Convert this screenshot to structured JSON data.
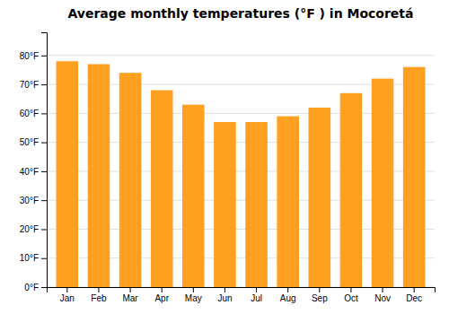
{
  "chart_data": {
    "type": "bar",
    "title": "Average monthly temperatures (°F ) in Mocoretá",
    "categories": [
      "Jan",
      "Feb",
      "Mar",
      "Apr",
      "May",
      "Jun",
      "Jul",
      "Aug",
      "Sep",
      "Oct",
      "Nov",
      "Dec"
    ],
    "values": [
      78,
      77,
      74,
      68,
      63,
      57,
      57,
      59,
      62,
      67,
      72,
      76
    ],
    "color": "#FFA020",
    "ylim": [
      0,
      88
    ],
    "yticks": [
      {
        "value": 0,
        "label": "0°F"
      },
      {
        "value": 10,
        "label": "10°F"
      },
      {
        "value": 20,
        "label": "20°F"
      },
      {
        "value": 30,
        "label": "30°F"
      },
      {
        "value": 40,
        "label": "40°F"
      },
      {
        "value": 50,
        "label": "50°F"
      },
      {
        "value": 60,
        "label": "60°F"
      },
      {
        "value": 70,
        "label": "70°F"
      },
      {
        "value": 80,
        "label": "80°F"
      }
    ],
    "grid": true
  }
}
